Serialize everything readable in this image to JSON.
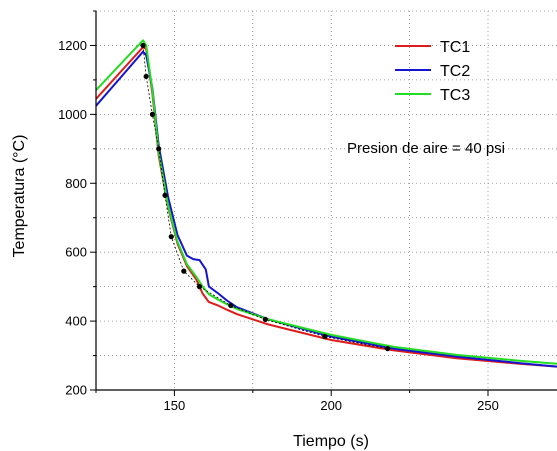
{
  "chart_data": {
    "type": "line",
    "title": "",
    "xlabel": "Tiempo (s)",
    "ylabel": "Temperatura (°C)",
    "xlim": [
      125,
      272
    ],
    "ylim": [
      200,
      1300
    ],
    "xticks": [
      150,
      200,
      250
    ],
    "yticks": [
      200,
      400,
      600,
      800,
      1000,
      1200
    ],
    "grid": true,
    "legend_position": "top-right",
    "annotation": "Presion de aire = 40 psi",
    "series": [
      {
        "name": "TC1",
        "color": "#dd1c1c",
        "x": [
          125,
          140,
          141,
          143,
          145,
          148,
          151,
          154,
          157,
          159,
          161,
          164,
          167,
          170,
          180,
          200,
          220,
          240,
          260,
          272
        ],
        "y": [
          1045,
          1195,
          1190,
          1060,
          880,
          730,
          625,
          560,
          520,
          480,
          455,
          445,
          432,
          420,
          390,
          345,
          315,
          292,
          276,
          268
        ]
      },
      {
        "name": "TC2",
        "color": "#1515d0",
        "x": [
          125,
          140,
          141,
          143,
          145,
          148,
          151,
          154,
          156,
          158,
          160,
          161,
          164,
          167,
          170,
          180,
          200,
          220,
          240,
          260,
          272
        ],
        "y": [
          1025,
          1182,
          1172,
          1075,
          910,
          760,
          650,
          590,
          580,
          577,
          550,
          500,
          480,
          458,
          440,
          405,
          355,
          320,
          297,
          278,
          268
        ]
      },
      {
        "name": "TC3",
        "color": "#22dd22",
        "x": [
          125,
          140,
          141,
          143,
          145,
          148,
          151,
          154,
          157,
          159,
          161,
          164,
          167,
          170,
          180,
          200,
          220,
          240,
          260,
          272
        ],
        "y": [
          1070,
          1215,
          1200,
          1070,
          890,
          735,
          630,
          565,
          528,
          500,
          478,
          462,
          448,
          435,
          405,
          360,
          325,
          302,
          285,
          276
        ]
      },
      {
        "name": "",
        "color": "#000000",
        "style": "dashed-markers",
        "x": [
          140,
          141,
          143,
          145,
          147,
          149,
          153,
          158,
          168,
          179,
          198,
          218
        ],
        "y": [
          1200,
          1110,
          1000,
          900,
          765,
          645,
          545,
          500,
          445,
          405,
          355,
          320
        ]
      }
    ]
  }
}
